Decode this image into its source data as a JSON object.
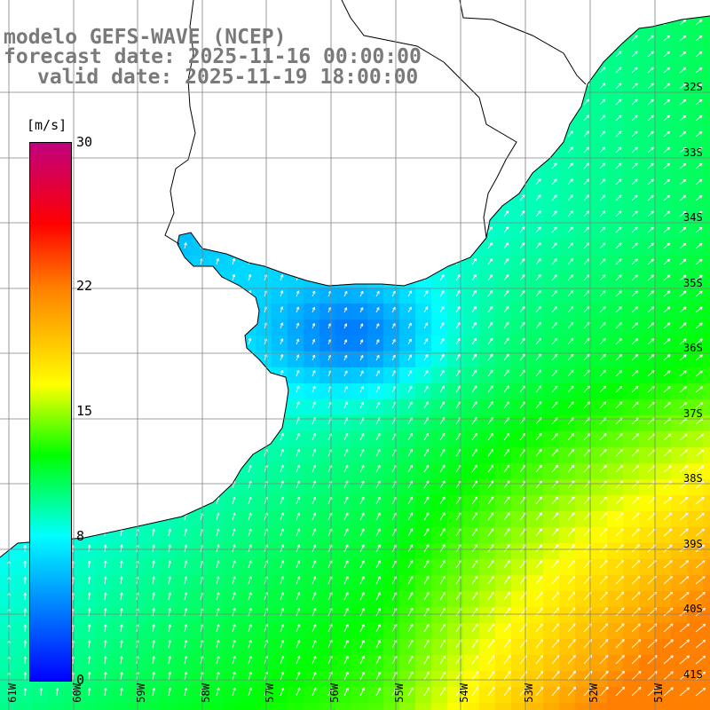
{
  "title": {
    "line1": "modelo GEFS-WAVE (NCEP)",
    "line2": "forecast date: 2025-11-16 00:00:00",
    "line3": "valid date: 2025-11-19 18:00:00"
  },
  "colorbar": {
    "unit": "[m/s]",
    "min": 0,
    "max": 30,
    "ticks": [
      "30",
      "22",
      "15",
      "8",
      "0"
    ],
    "tick_values": [
      30,
      22,
      15,
      8,
      0
    ],
    "colors": [
      "#0000ff",
      "#00ffff",
      "#00ff00",
      "#ffff00",
      "#ff8000",
      "#ff0000",
      "#c0007f"
    ]
  },
  "map": {
    "lon_labels": [
      "61W",
      "60W",
      "59W",
      "58W",
      "57W",
      "56W",
      "55W",
      "54W",
      "53W",
      "52W",
      "51W"
    ],
    "lat_labels": [
      "32S",
      "33S",
      "34S",
      "35S",
      "36S",
      "37S",
      "38S",
      "39S",
      "40S",
      "41S"
    ],
    "land_color": "#ffffff",
    "grid_color": "#808080",
    "arrow_color": "#ffffff"
  },
  "chart_data": {
    "type": "heatmap",
    "variable": "wind speed",
    "unit": "[m/s]",
    "range": [
      0,
      30
    ]
  }
}
